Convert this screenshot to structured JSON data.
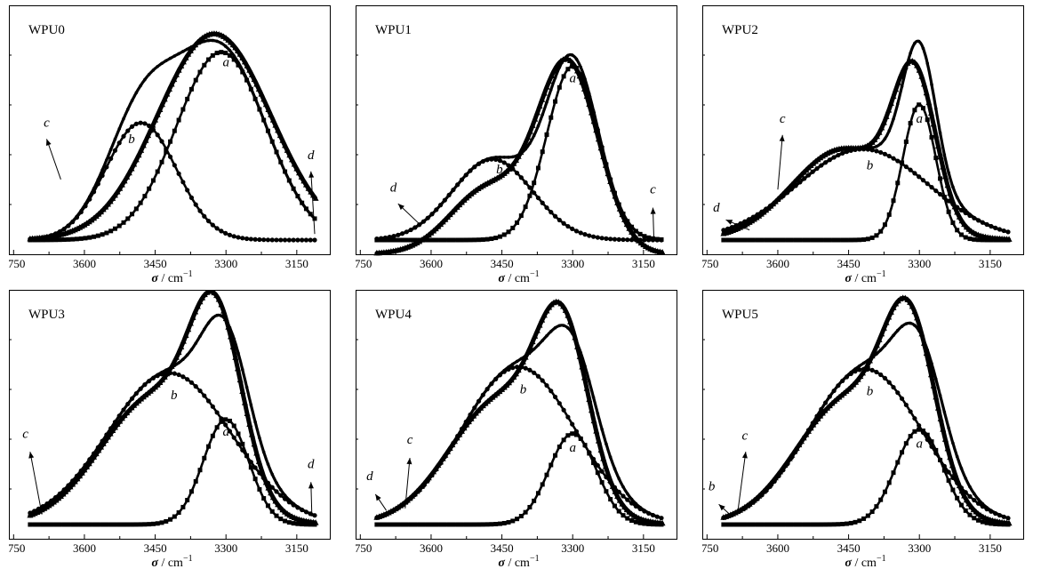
{
  "chart_data": [
    {
      "type": "line",
      "title": "WPU0",
      "xlabel_symbol": "σ",
      "xlabel_unit": " / cm",
      "xlabel_exp": "−1",
      "xlim": [
        3760,
        3080
      ],
      "xticks": [
        3750,
        3600,
        3450,
        3300,
        3150
      ],
      "ylim": [
        0,
        1.1
      ],
      "x_start": 3715,
      "x_end": 3110,
      "series": [
        {
          "component": "a",
          "peaks": [
            {
              "center": 3310,
              "height": 0.93,
              "width": 95
            }
          ],
          "baseline": 0.0
        },
        {
          "component": "b",
          "peaks": [
            {
              "center": 3480,
              "height": 0.58,
              "width": 75
            }
          ],
          "baseline": 0.0
        },
        {
          "component": "c",
          "peaks": [
            {
              "center": 3310,
              "height": 0.93,
              "width": 95
            },
            {
              "center": 3480,
              "height": 0.58,
              "width": 75
            }
          ],
          "baseline": 0.0,
          "composite": true
        },
        {
          "component": "d",
          "peaks": [
            {
              "center": 3325,
              "height": 1.02,
              "width": 120
            }
          ],
          "baseline": 0.0,
          "measured": true
        }
      ],
      "annotations": [
        {
          "text": "a",
          "x": 3300,
          "y": 0.86
        },
        {
          "text": "b",
          "x": 3500,
          "y": 0.48
        },
        {
          "text": "c",
          "x": 3680,
          "y": 0.56,
          "arrow_to": [
            3650,
            0.3
          ],
          "arrow_from": [
            3680,
            0.5
          ]
        },
        {
          "text": "d",
          "x": 3120,
          "y": 0.4,
          "arrow_to": [
            3112,
            0.03
          ],
          "arrow_from": [
            3120,
            0.34
          ]
        }
      ]
    },
    {
      "type": "line",
      "title": "WPU1",
      "xlabel_symbol": "σ",
      "xlabel_unit": " / cm",
      "xlabel_exp": "−1",
      "xlim": [
        3760,
        3080
      ],
      "xticks": [
        3750,
        3600,
        3450,
        3300,
        3150
      ],
      "ylim": [
        0,
        1.1
      ],
      "x_start": 3715,
      "x_end": 3110,
      "series": [
        {
          "component": "a",
          "peaks": [
            {
              "center": 3300,
              "height": 0.86,
              "width": 55
            }
          ],
          "baseline": 0.0
        },
        {
          "component": "b",
          "peaks": [
            {
              "center": 3470,
              "height": 0.4,
              "width": 85
            }
          ],
          "baseline": 0.0
        },
        {
          "component": "c",
          "peaks": [
            {
              "center": 3300,
              "height": 0.86,
              "width": 55
            },
            {
              "center": 3470,
              "height": 0.4,
              "width": 85
            }
          ],
          "baseline": 0.0,
          "composite": true
        },
        {
          "component": "d",
          "peaks": [
            {
              "center": 3310,
              "height": 0.93,
              "width": 65
            },
            {
              "center": 3480,
              "height": 0.32,
              "width": 80
            }
          ],
          "baseline": -0.07,
          "measured": true
        }
      ],
      "annotations": [
        {
          "text": "a",
          "x": 3300,
          "y": 0.78
        },
        {
          "text": "b",
          "x": 3455,
          "y": 0.33
        },
        {
          "text": "c",
          "x": 3130,
          "y": 0.23,
          "arrow_to": [
            3128,
            0.01
          ],
          "arrow_from": [
            3130,
            0.16
          ]
        },
        {
          "text": "d",
          "x": 3680,
          "y": 0.24,
          "arrow_to": [
            3625,
            0.08
          ],
          "arrow_from": [
            3670,
            0.18
          ]
        }
      ]
    },
    {
      "type": "line",
      "title": "WPU2",
      "xlabel_symbol": "σ",
      "xlabel_unit": " / cm",
      "xlabel_exp": "−1",
      "xlim": [
        3760,
        3080
      ],
      "xticks": [
        3750,
        3600,
        3450,
        3300,
        3150
      ],
      "ylim": [
        0,
        1.1
      ],
      "x_start": 3715,
      "x_end": 3110,
      "series": [
        {
          "component": "a",
          "peaks": [
            {
              "center": 3300,
              "height": 0.67,
              "width": 35
            }
          ],
          "baseline": 0.0
        },
        {
          "component": "b",
          "peaks": [
            {
              "center": 3420,
              "height": 0.45,
              "width": 140
            }
          ],
          "baseline": 0.0
        },
        {
          "component": "c",
          "peaks": [
            {
              "center": 3300,
              "height": 0.67,
              "width": 35
            },
            {
              "center": 3420,
              "height": 0.45,
              "width": 140
            }
          ],
          "baseline": 0.0,
          "composite": true
        },
        {
          "component": "d",
          "peaks": [
            {
              "center": 3310,
              "height": 0.7,
              "width": 45
            },
            {
              "center": 3460,
              "height": 0.45,
              "width": 110
            }
          ],
          "baseline": 0.0,
          "measured": true
        }
      ],
      "annotations": [
        {
          "text": "a",
          "x": 3300,
          "y": 0.58
        },
        {
          "text": "b",
          "x": 3405,
          "y": 0.35
        },
        {
          "text": "c",
          "x": 3590,
          "y": 0.58,
          "arrow_to": [
            3600,
            0.25
          ],
          "arrow_from": [
            3590,
            0.52
          ]
        },
        {
          "text": "d",
          "x": 3730,
          "y": 0.14,
          "arrow_to": [
            3660,
            0.05
          ],
          "arrow_from": [
            3710,
            0.1
          ]
        }
      ]
    },
    {
      "type": "line",
      "title": "WPU3",
      "xlabel_symbol": "σ",
      "xlabel_unit": " / cm",
      "xlabel_exp": "−1",
      "xlim": [
        3760,
        3080
      ],
      "xticks": [
        3750,
        3600,
        3450,
        3300,
        3150
      ],
      "ylim": [
        0,
        1.1
      ],
      "x_start": 3715,
      "x_end": 3110,
      "series": [
        {
          "component": "a",
          "peaks": [
            {
              "center": 3300,
              "height": 0.52,
              "width": 48
            }
          ],
          "baseline": 0.0
        },
        {
          "component": "b",
          "peaks": [
            {
              "center": 3420,
              "height": 0.75,
              "width": 130
            }
          ],
          "baseline": 0.0
        },
        {
          "component": "c",
          "peaks": [
            {
              "center": 3300,
              "height": 0.52,
              "width": 48
            },
            {
              "center": 3420,
              "height": 0.75,
              "width": 130
            }
          ],
          "baseline": 0.0,
          "composite": true
        },
        {
          "component": "d",
          "peaks": [
            {
              "center": 3320,
              "height": 0.8,
              "width": 55
            },
            {
              "center": 3450,
              "height": 0.63,
              "width": 115
            }
          ],
          "baseline": 0.0,
          "measured": true
        }
      ],
      "annotations": [
        {
          "text": "a",
          "x": 3300,
          "y": 0.44
        },
        {
          "text": "b",
          "x": 3410,
          "y": 0.62
        },
        {
          "text": "c",
          "x": 3725,
          "y": 0.43,
          "arrow_to": [
            3690,
            0.05
          ],
          "arrow_from": [
            3715,
            0.36
          ]
        },
        {
          "text": "d",
          "x": 3120,
          "y": 0.28,
          "arrow_to": [
            3118,
            0.04
          ],
          "arrow_from": [
            3120,
            0.21
          ]
        }
      ]
    },
    {
      "type": "line",
      "title": "WPU4",
      "xlabel_symbol": "σ",
      "xlabel_unit": " / cm",
      "xlabel_exp": "−1",
      "xlim": [
        3760,
        3080
      ],
      "xticks": [
        3750,
        3600,
        3450,
        3300,
        3150
      ],
      "ylim": [
        0,
        1.1
      ],
      "x_start": 3715,
      "x_end": 3110,
      "series": [
        {
          "component": "a",
          "peaks": [
            {
              "center": 3300,
              "height": 0.45,
              "width": 50
            }
          ],
          "baseline": 0.0
        },
        {
          "component": "b",
          "peaks": [
            {
              "center": 3415,
              "height": 0.78,
              "width": 120
            }
          ],
          "baseline": 0.0
        },
        {
          "component": "c",
          "peaks": [
            {
              "center": 3300,
              "height": 0.45,
              "width": 50
            },
            {
              "center": 3415,
              "height": 0.78,
              "width": 120
            }
          ],
          "baseline": 0.0,
          "composite": true
        },
        {
          "component": "d",
          "peaks": [
            {
              "center": 3320,
              "height": 0.77,
              "width": 55
            },
            {
              "center": 3450,
              "height": 0.62,
              "width": 110
            }
          ],
          "baseline": 0.0,
          "measured": true
        }
      ],
      "annotations": [
        {
          "text": "a",
          "x": 3300,
          "y": 0.36
        },
        {
          "text": "b",
          "x": 3405,
          "y": 0.65
        },
        {
          "text": "c",
          "x": 3645,
          "y": 0.4,
          "arrow_to": [
            3655,
            0.08
          ],
          "arrow_from": [
            3645,
            0.33
          ]
        },
        {
          "text": "d",
          "x": 3730,
          "y": 0.22,
          "arrow_to": [
            3695,
            0.07
          ],
          "arrow_from": [
            3718,
            0.15
          ]
        }
      ]
    },
    {
      "type": "line",
      "title": "WPU5",
      "xlabel_symbol": "σ",
      "xlabel_unit": " / cm",
      "xlabel_exp": "−1",
      "xlim": [
        3760,
        3080
      ],
      "xticks": [
        3750,
        3600,
        3450,
        3300,
        3150
      ],
      "ylim": [
        0,
        1.1
      ],
      "x_start": 3715,
      "x_end": 3110,
      "series": [
        {
          "component": "a",
          "peaks": [
            {
              "center": 3300,
              "height": 0.47,
              "width": 50
            }
          ],
          "baseline": 0.0
        },
        {
          "component": "b",
          "peaks": [
            {
              "center": 3415,
              "height": 0.77,
              "width": 120
            }
          ],
          "baseline": 0.0
        },
        {
          "component": "c",
          "peaks": [
            {
              "center": 3300,
              "height": 0.47,
              "width": 50
            },
            {
              "center": 3415,
              "height": 0.77,
              "width": 120
            }
          ],
          "baseline": 0.0,
          "composite": true
        },
        {
          "component": "d",
          "peaks": [
            {
              "center": 3320,
              "height": 0.79,
              "width": 55
            },
            {
              "center": 3450,
              "height": 0.62,
              "width": 110
            }
          ],
          "baseline": 0.0,
          "measured": true
        }
      ],
      "annotations": [
        {
          "text": "a",
          "x": 3300,
          "y": 0.38
        },
        {
          "text": "b",
          "x": 3405,
          "y": 0.64
        },
        {
          "text": "c",
          "x": 3670,
          "y": 0.42,
          "arrow_to": [
            3685,
            0.06
          ],
          "arrow_from": [
            3668,
            0.36
          ]
        },
        {
          "text": "b",
          "x": 3740,
          "y": 0.17,
          "arrow_to": [
            3697,
            0.04
          ],
          "arrow_from": [
            3725,
            0.1
          ]
        }
      ]
    }
  ]
}
